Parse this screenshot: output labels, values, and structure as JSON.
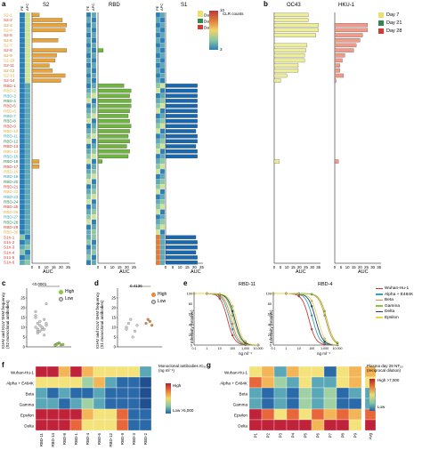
{
  "panels": {
    "a": "a",
    "b": "b",
    "c": "c",
    "d": "d",
    "e": "e",
    "f": "f",
    "g": "g"
  },
  "colors": {
    "day7": "#e9e06e",
    "day21": "#2e8a4b",
    "day28": "#d43a2f",
    "s2_label": "#c98a1e",
    "rbd_label": "#d9b53b",
    "s1_label": "#d43a2f",
    "bar_s2": "#e8a33a",
    "bar_rbd": "#6fb43f",
    "bar_s1": "#1868b0",
    "bar_oc43": "#eeee99",
    "bar_hku1": "#f09a8a"
  },
  "panel_a": {
    "titles": [
      "S2",
      "RBD",
      "S1"
    ],
    "col_headers": [
      "PE",
      "APC"
    ],
    "auc_label": "AUC",
    "x_ticks": [
      "0",
      "5",
      "10",
      "15",
      "20",
      "25"
    ],
    "clr_legend": {
      "title": "CLR counts",
      "max": "10",
      "min": "3"
    },
    "rows": [
      "S2-1",
      "S2-2",
      "S2-3",
      "S2-4",
      "S2-5",
      "S2-6",
      "S2-7",
      "S2-8",
      "S2-9",
      "S2-10",
      "S2-11",
      "S2-12",
      "S2-13",
      "S2-14",
      "RBD-1",
      "RBD-2",
      "RBD-3",
      "RBD-4",
      "RBD-5",
      "RBD-6",
      "RBD-7",
      "RBD-8",
      "RBD-9",
      "RBD-10",
      "RBD-11",
      "RBD-12",
      "RBD-13",
      "RBD-14",
      "RBD-15",
      "RBD-16",
      "RBD-17",
      "RBD-18",
      "RBD-19",
      "RBD-20",
      "RBD-21",
      "RBD-22",
      "RBD-23",
      "RBD-24",
      "RBD-25",
      "RBD-26",
      "RBD-27",
      "RBD-28",
      "RBD-29",
      "RBD-30",
      "S1n-1",
      "S1n-2",
      "S1n-3",
      "S1n-4",
      "S1n-5",
      "S1n-6"
    ]
  },
  "panel_b": {
    "titles": [
      "OC43",
      "HKU-1"
    ],
    "auc_label": "AUC",
    "x_ticks": [
      "0",
      "5",
      "10",
      "15",
      "20",
      "25",
      "30",
      "35"
    ],
    "legend": [
      "Day 7",
      "Day 21",
      "Day 28"
    ]
  },
  "panel_c": {
    "ylabel": "IGHV and IGLV SHM frequency (S2 monoclonal antibodies)",
    "pvalue": "<0.0001",
    "legend": [
      "High",
      "Low"
    ],
    "y_ticks": [
      "0",
      "5",
      "10",
      "15",
      "20",
      "25"
    ]
  },
  "panel_d": {
    "ylabel": "IGHV and IGLV SHM frequency (S1 monoclonal antibodies)",
    "pvalue": "0.4136",
    "legend": [
      "High",
      "Low"
    ],
    "y_ticks": [
      "0",
      "5",
      "10",
      "15",
      "20",
      "25"
    ]
  },
  "panel_e": {
    "titles": [
      "RBD-11",
      "RBD-4"
    ],
    "ylabel": "Infectivity (relative)",
    "xlabel": "ng ml⁻¹",
    "x_ticks": [
      "0.1",
      "1",
      "10",
      "100",
      "1,000",
      "10,000"
    ],
    "y_ticks": [
      "0",
      "20",
      "40",
      "60",
      "80",
      "100"
    ],
    "legend": [
      "Wuhan-Hu-1",
      "Alpha + E484K",
      "Beta",
      "Gamma",
      "Delta",
      "Epsilon"
    ]
  },
  "panel_f": {
    "rows": [
      "Wuhan-Hu-1",
      "Alpha + E484K",
      "Beta",
      "Gamma",
      "Epsilon",
      "Delta"
    ],
    "cols": [
      "RBD-11",
      "RBD-14",
      "RBD-8",
      "RBD-1",
      "RBD-4",
      "RBD-6",
      "RBD-12",
      "RBD-9",
      "RBD-3",
      "RBD-2"
    ],
    "legend_title": "Monoclonal antibodies IC₅₀ (ng ml⁻¹)",
    "legend_high": "High",
    "legend_low": "Low >5,000"
  },
  "panel_g": {
    "rows": [
      "Wuhan-Hu-1",
      "Alpha + E484K",
      "Beta",
      "Gamma",
      "Epsilon",
      "Delta"
    ],
    "cols": [
      "P1",
      "P2",
      "P3",
      "P4",
      "P5",
      "P6",
      "P7",
      "P8",
      "P9"
    ],
    "avg": "Avg",
    "legend_title": "Plasma day 28 NT₅₀ (reciprocal dilution)",
    "legend_high": "High >7,000",
    "legend_low": "Low"
  }
}
